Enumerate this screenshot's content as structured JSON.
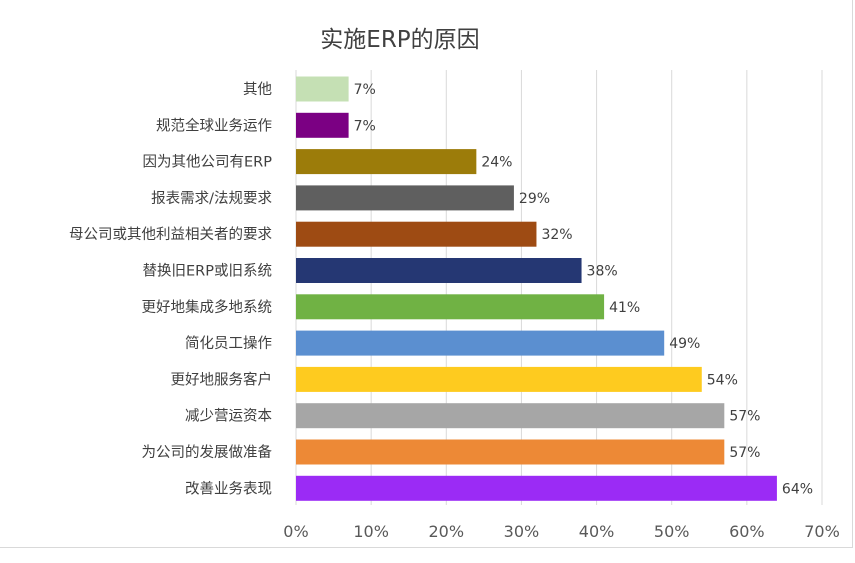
{
  "chart_data": {
    "type": "bar",
    "orientation": "horizontal",
    "title": "实施ERP的原因",
    "categories": [
      "其他",
      "规范全球业务运作",
      "因为其他公司有ERP",
      "报表需求/法规要求",
      "母公司或其他利益相关者的要求",
      "替换旧ERP或旧系统",
      "更好地集成多地系统",
      "简化员工操作",
      "更好地服务客户",
      "减少营运资本",
      "为公司的发展做准备",
      "改善业务表现"
    ],
    "values": [
      7,
      7,
      24,
      29,
      32,
      38,
      41,
      49,
      54,
      57,
      57,
      64
    ],
    "data_labels": [
      "7%",
      "7%",
      "24%",
      "29%",
      "32%",
      "38%",
      "41%",
      "49%",
      "54%",
      "57%",
      "57%",
      "64%"
    ],
    "colors": [
      "#c5e0b4",
      "#7b0083",
      "#9c7c0a",
      "#5f5f5f",
      "#9e4b13",
      "#253773",
      "#70b244",
      "#5b8fd0",
      "#fecb1f",
      "#a6a6a6",
      "#ed8936",
      "#9b2bf5"
    ],
    "xlim": [
      0,
      70
    ],
    "x_ticks": [
      0,
      10,
      20,
      30,
      40,
      50,
      60,
      70
    ],
    "x_tick_labels": [
      "0%",
      "10%",
      "20%",
      "30%",
      "40%",
      "50%",
      "60%",
      "70%"
    ],
    "grid": true,
    "legend": false
  }
}
